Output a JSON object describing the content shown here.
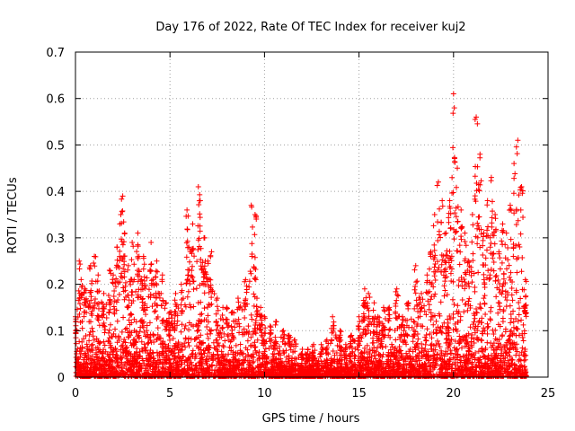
{
  "chart_data": {
    "type": "scatter",
    "title": "Day 176 of 2022, Rate Of TEC Index for receiver kuj2",
    "xlabel": "GPS time / hours",
    "ylabel": "ROTI / TECUs",
    "xlim": [
      0,
      25
    ],
    "ylim": [
      0,
      0.7
    ],
    "xticks": [
      "0",
      "5",
      "10",
      "15",
      "20",
      "25"
    ],
    "yticks": [
      "0",
      "0.1",
      "0.2",
      "0.3",
      "0.4",
      "0.5",
      "0.6",
      "0.7"
    ],
    "grid": true,
    "marker": "+",
    "color": "#ff0000",
    "series": [
      {
        "name": "ROTI",
        "x": [
          0.0,
          0.2,
          0.3,
          0.5,
          0.8,
          1.0,
          1.2,
          1.5,
          1.8,
          2.0,
          2.2,
          2.4,
          2.5,
          2.6,
          2.8,
          3.0,
          3.3,
          3.5,
          3.6,
          4.0,
          4.3,
          4.6,
          4.8,
          5.0,
          5.3,
          5.6,
          5.9,
          6.0,
          6.2,
          6.5,
          6.6,
          6.8,
          7.0,
          7.2,
          7.5,
          7.8,
          8.0,
          8.3,
          8.6,
          9.0,
          9.3,
          9.5,
          9.6,
          9.8,
          10.0,
          10.3,
          10.6,
          11.0,
          11.3,
          11.6,
          12.0,
          12.3,
          12.6,
          13.0,
          13.3,
          13.6,
          14.0,
          14.3,
          14.6,
          15.0,
          15.3,
          15.5,
          15.8,
          16.0,
          16.3,
          16.6,
          17.0,
          17.3,
          17.6,
          18.0,
          18.3,
          18.6,
          18.8,
          19.0,
          19.2,
          19.4,
          19.6,
          19.8,
          20.0,
          20.2,
          20.4,
          20.6,
          20.8,
          21.0,
          21.2,
          21.4,
          21.6,
          21.8,
          22.0,
          22.2,
          22.4,
          22.6,
          22.8,
          23.0,
          23.2,
          23.4,
          23.6,
          23.8
        ],
        "y": [
          0.13,
          0.25,
          0.21,
          0.19,
          0.24,
          0.26,
          0.22,
          0.18,
          0.23,
          0.22,
          0.28,
          0.35,
          0.39,
          0.31,
          0.24,
          0.29,
          0.31,
          0.21,
          0.26,
          0.29,
          0.25,
          0.22,
          0.16,
          0.14,
          0.18,
          0.2,
          0.36,
          0.28,
          0.33,
          0.41,
          0.38,
          0.3,
          0.25,
          0.27,
          0.17,
          0.15,
          0.15,
          0.14,
          0.17,
          0.21,
          0.37,
          0.35,
          0.17,
          0.15,
          0.13,
          0.11,
          0.12,
          0.1,
          0.09,
          0.08,
          0.06,
          0.06,
          0.07,
          0.07,
          0.08,
          0.13,
          0.1,
          0.07,
          0.09,
          0.13,
          0.19,
          0.18,
          0.16,
          0.13,
          0.15,
          0.15,
          0.19,
          0.13,
          0.16,
          0.24,
          0.18,
          0.22,
          0.27,
          0.35,
          0.42,
          0.38,
          0.31,
          0.38,
          0.61,
          0.45,
          0.36,
          0.31,
          0.25,
          0.35,
          0.56,
          0.48,
          0.31,
          0.38,
          0.43,
          0.35,
          0.27,
          0.33,
          0.31,
          0.37,
          0.46,
          0.51,
          0.41,
          0.21
        ]
      }
    ]
  }
}
